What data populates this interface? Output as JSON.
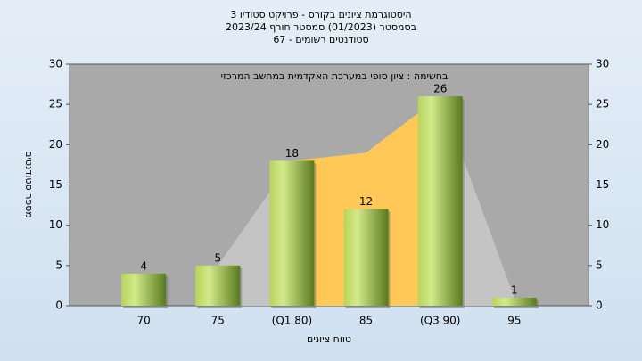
{
  "chart_data": {
    "type": "bar",
    "title": [
      "היסטוגרמת ציונים בקורס - פרויקט סטודיו 3",
      "בסמסטר  (01/2023)  סמסטר חורף 2023/24",
      "סטודנטים רשומים - 67"
    ],
    "annotation": "בחשימה : ציון סופי במערכת האקדמית במחשב המרכזי",
    "xlabel": "טווח ציונים",
    "ylabel": "מספר סטודנטים",
    "categories": [
      "70",
      "75",
      "(Q1 80)",
      "85",
      "(Q3 90)",
      "95"
    ],
    "series": [
      {
        "values": [
          4,
          5,
          18,
          12,
          26,
          1
        ],
        "color": "#8fb43c"
      }
    ],
    "areas": [
      {
        "values": [
          null,
          5,
          18,
          19,
          26,
          1
        ],
        "color": "#c4c4c4"
      },
      {
        "values": [
          null,
          null,
          18,
          19,
          26,
          null
        ],
        "color": "#ffc857"
      }
    ],
    "ylim": [
      0,
      30
    ],
    "yticks": [
      0,
      5,
      10,
      15,
      20,
      25,
      30
    ],
    "y2lim": [
      0,
      30
    ],
    "y2ticks": [
      0,
      5,
      10,
      15,
      20,
      25,
      30
    ]
  }
}
